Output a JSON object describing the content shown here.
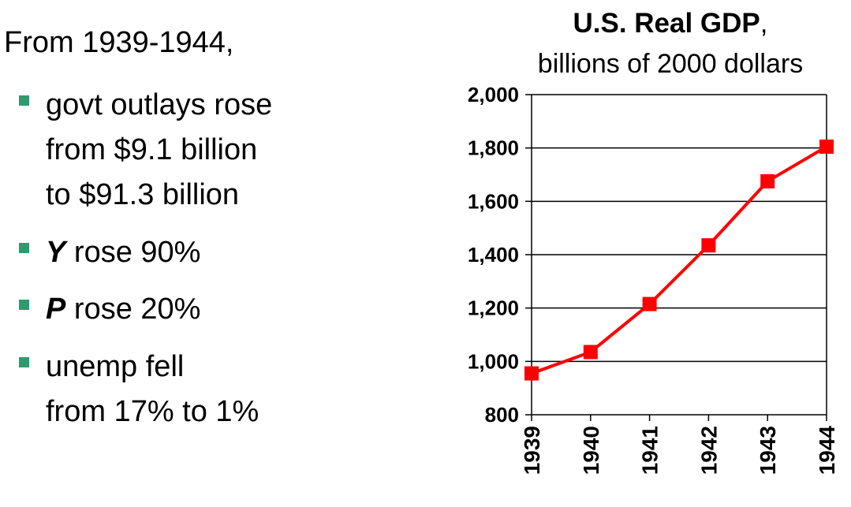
{
  "text": {
    "intro": "From 1939-1944,",
    "bullets": [
      {
        "lines": [
          "govt outlays rose",
          "from $9.1 billion",
          "to $91.3 billion"
        ]
      },
      {
        "symbol": "Y",
        "rest": " rose 90%"
      },
      {
        "symbol": "P",
        "rest": " rose 20%"
      },
      {
        "lines": [
          "unemp fell",
          "from 17% to 1%"
        ]
      }
    ]
  },
  "colors": {
    "bullet": "#2e9a6e",
    "series": "#ff0000",
    "axis": "#000000"
  },
  "chart_data": {
    "type": "line",
    "title": "U.S. Real GDP",
    "title_suffix": ",",
    "subtitle": "billions of 2000 dollars",
    "xlabel": "",
    "ylabel": "",
    "categories": [
      "1939",
      "1940",
      "1941",
      "1942",
      "1943",
      "1944"
    ],
    "series": [
      {
        "values": [
          955,
          1035,
          1215,
          1435,
          1675,
          1805
        ]
      }
    ],
    "ylim": [
      800,
      2000
    ],
    "yticks": [
      800,
      1000,
      1200,
      1400,
      1600,
      1800,
      2000
    ],
    "ytick_labels": [
      "800",
      "1,000",
      "1,200",
      "1,400",
      "1,600",
      "1,800",
      "2,000"
    ],
    "grid": true,
    "marker": "square",
    "legend": "none"
  }
}
